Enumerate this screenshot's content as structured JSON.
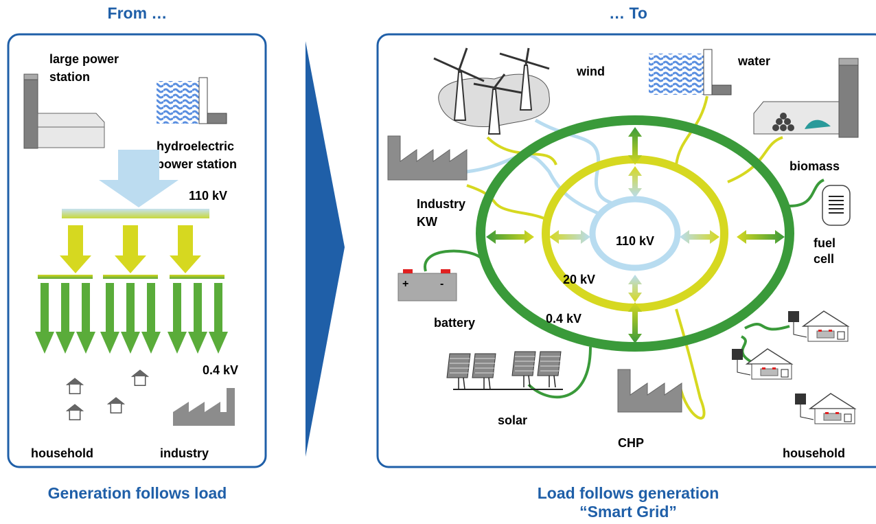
{
  "left": {
    "title": "From …",
    "large_power_station": [
      "large power",
      "station"
    ],
    "hydroelectric_power_station": [
      "hydroelectric",
      "power station"
    ],
    "high_voltage": "110 kV",
    "low_voltage": "0.4 kV",
    "household": "household",
    "industry": "industry",
    "caption": "Generation follows load"
  },
  "right": {
    "title": "… To",
    "wind": "wind",
    "water": "water",
    "biomass": "biomass",
    "industry_kw": [
      "Industry",
      "KW"
    ],
    "fuel_cell": [
      "fuel",
      "cell"
    ],
    "high_voltage": "110 kV",
    "medium_voltage": "20 kV",
    "low_voltage": "0.4 kV",
    "battery": "battery",
    "battery_plus": "+",
    "battery_minus": "-",
    "solar": "solar",
    "chp": "CHP",
    "household": "household",
    "caption": [
      "Load follows generation",
      "“Smart Grid”"
    ]
  }
}
